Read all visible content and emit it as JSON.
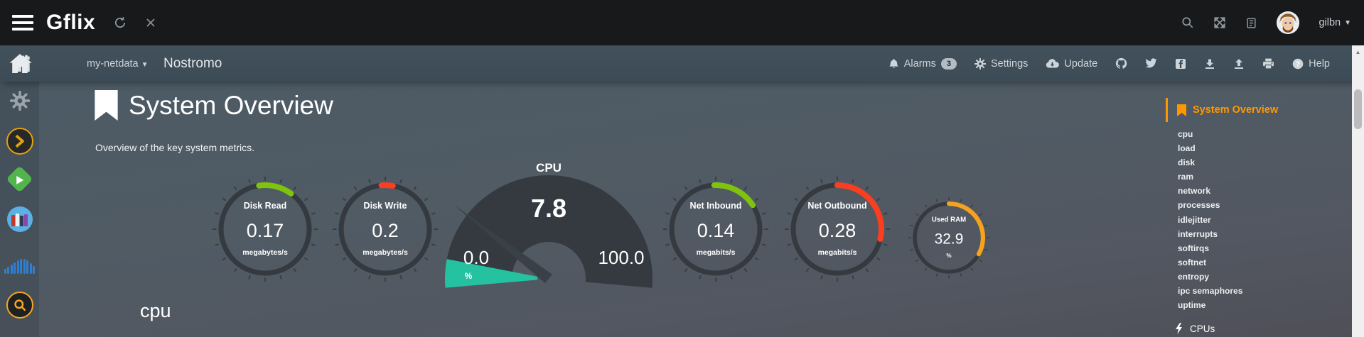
{
  "topbar": {
    "brand": "Gflix",
    "username": "gilbn",
    "icon_names": [
      "hamburger-menu-icon",
      "refresh-icon",
      "close-icon",
      "search-icon",
      "fullscreen-icon",
      "docs-icon",
      "avatar",
      "caret-down-icon"
    ]
  },
  "navbar": {
    "server_dropdown_label": "my-netdata",
    "hostname": "Nostromo",
    "alarms_label": "Alarms",
    "alarms_count": "3",
    "settings_label": "Settings",
    "update_label": "Update",
    "help_label": "Help",
    "icon_names": [
      "home-icon",
      "bell-icon",
      "gear-icon",
      "cloud-download-icon",
      "github-icon",
      "twitter-icon",
      "facebook-icon",
      "download-icon",
      "upload-icon",
      "print-icon",
      "help-icon"
    ]
  },
  "sidebar": {
    "icon_names": [
      "home-icon",
      "gear-icon",
      "plex-app-icon",
      "emby-app-icon",
      "books-app-icon",
      "soundcloud-app-icon",
      "jackett-search-icon"
    ]
  },
  "page": {
    "title": "System Overview",
    "subtitle": "Overview of the key system metrics.",
    "section_heading": "cpu"
  },
  "toc": {
    "active_title": "System Overview",
    "items": [
      "cpu",
      "load",
      "disk",
      "ram",
      "network",
      "processes",
      "idlejitter",
      "interrupts",
      "softirqs",
      "softnet",
      "entropy",
      "ipc semaphores",
      "uptime"
    ],
    "subsection": "CPUs",
    "accent_color": "#ff9800"
  },
  "chart_data": {
    "type": "gauge",
    "gauges": [
      {
        "label": "Disk Read",
        "value": "0.17",
        "units": "megabytes/s",
        "arc_color": "#7fc30d",
        "arc_start_deg": -8,
        "arc_end_deg": 36
      },
      {
        "label": "Disk Write",
        "value": "0.2",
        "units": "megabytes/s",
        "arc_color": "#fb3d20",
        "arc_start_deg": -5,
        "arc_end_deg": 10
      },
      {
        "label": "CPU",
        "value": "7.8",
        "min": "0.0",
        "max": "100.0",
        "units": "%",
        "value_percent": 7.8,
        "fill_color": "#25c2a2",
        "fan_color": "#343a40",
        "fan_start_deg": -95,
        "fan_end_deg": 95,
        "fill_start_deg": -95,
        "fill_end_deg": -79,
        "needle_deg": -52
      },
      {
        "label": "Net Inbound",
        "value": "0.14",
        "units": "megabits/s",
        "arc_color": "#7fc30d",
        "arc_start_deg": -2,
        "arc_end_deg": 57
      },
      {
        "label": "Net Outbound",
        "value": "0.28",
        "units": "megabits/s",
        "arc_color": "#fb3d20",
        "arc_start_deg": 0,
        "arc_end_deg": 103
      },
      {
        "label": "Used RAM",
        "value": "32.9",
        "units": "%",
        "arc_color": "#f6a21d",
        "arc_start_deg": 0,
        "arc_end_deg": 119
      }
    ]
  },
  "colors": {
    "topbar_bg": "#17191b",
    "navbar_bg": "#3e4d57",
    "content_bg_top": "#4c5b66",
    "content_bg_bottom": "#4f4f58",
    "gauge_ring": "#343a40",
    "green": "#7fc30d",
    "red": "#fb3d20",
    "teal": "#25c2a2",
    "orange": "#f6a21d",
    "toc_accent": "#ff9800"
  }
}
